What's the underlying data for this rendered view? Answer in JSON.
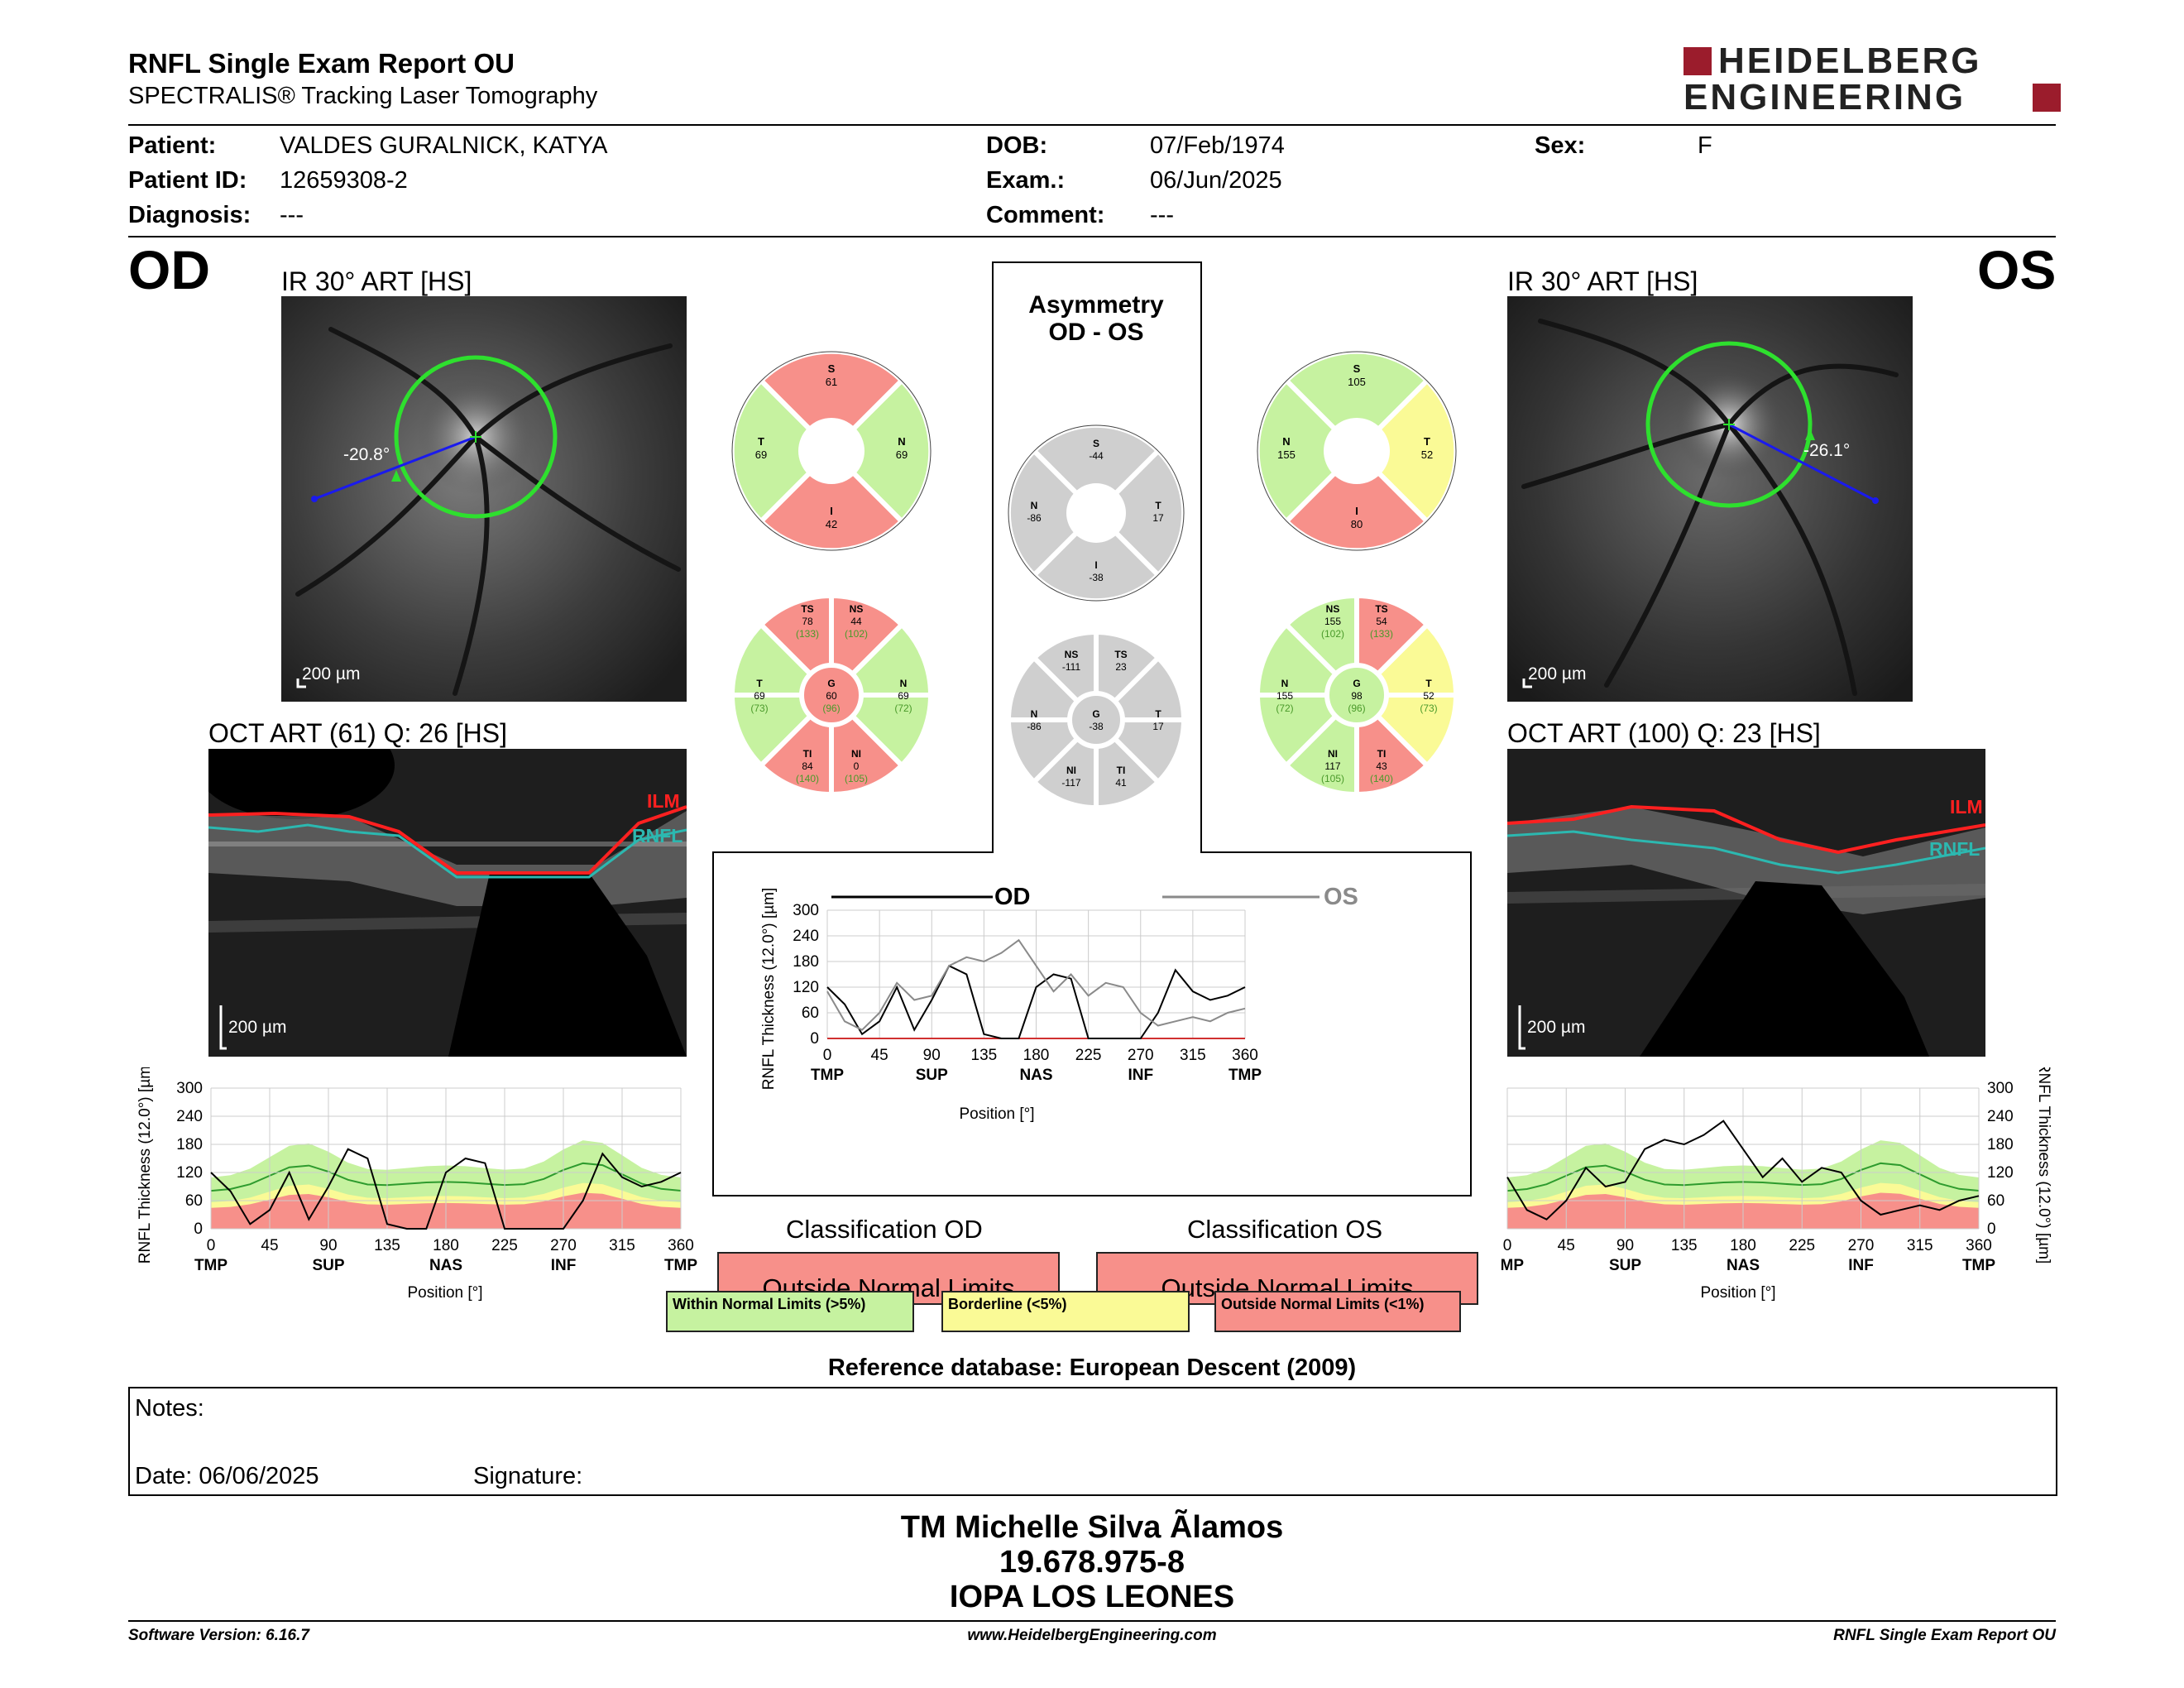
{
  "header": {
    "title": "RNFL Single Exam Report OU",
    "subtitle": "SPECTRALIS® Tracking Laser Tomography",
    "logo_line1": "HEIDELBERG",
    "logo_line2": "ENGINEERING"
  },
  "patient": {
    "patient_label": "Patient:",
    "patient_value": "VALDES GURALNICK, KATYA",
    "id_label": "Patient ID:",
    "id_value": "12659308-2",
    "diag_label": "Diagnosis:",
    "diag_value": "---",
    "dob_label": "DOB:",
    "dob_value": "07/Feb/1974",
    "exam_label": "Exam.:",
    "exam_value": "06/Jun/2025",
    "comment_label": "Comment:",
    "comment_value": "---",
    "sex_label": "Sex:",
    "sex_value": "F"
  },
  "od": {
    "eye": "OD",
    "ir_title": "IR 30° ART [HS]",
    "angle": "-20.8°",
    "scale": "200 µm",
    "oct_title": "OCT ART (61) Q: 26 [HS]",
    "ilm": "ILM",
    "rnfl": "RNFL",
    "sectors4": {
      "S": "61",
      "T": "69",
      "N": "69",
      "I": "42"
    },
    "sectors6": {
      "TS": "78",
      "TS_ref": "(133)",
      "NS": "44",
      "NS_ref": "(102)",
      "T": "69",
      "T_ref": "(73)",
      "G": "60",
      "G_ref": "(96)",
      "N": "69",
      "N_ref": "(72)",
      "TI": "84",
      "TI_ref": "(140)",
      "NI": "0",
      "NI_ref": "(105)"
    }
  },
  "os": {
    "eye": "OS",
    "ir_title": "IR 30° ART [HS]",
    "angle": "-26.1°",
    "scale": "200 µm",
    "oct_title": "OCT ART (100) Q: 23 [HS]",
    "ilm": "ILM",
    "rnfl": "RNFL",
    "sectors4": {
      "S": "105",
      "N": "155",
      "T": "52",
      "I": "80"
    },
    "sectors6": {
      "NS": "155",
      "NS_ref": "(102)",
      "TS": "54",
      "TS_ref": "(133)",
      "N": "155",
      "N_ref": "(72)",
      "G": "98",
      "G_ref": "(96)",
      "T": "52",
      "T_ref": "(73)",
      "NI": "117",
      "NI_ref": "(105)",
      "TI": "43",
      "TI_ref": "(140)"
    }
  },
  "asym": {
    "title1": "Asymmetry",
    "title2": "OD - OS",
    "sectors4": {
      "S": "-44",
      "N": "-86",
      "T": "17",
      "I": "-38"
    },
    "sectors6": {
      "NS": "-111",
      "TS": "23",
      "N": "-86",
      "G": "-38",
      "T": "17",
      "NI": "-117",
      "TI": "41"
    }
  },
  "charts": {
    "ylabel": "RNFL Thickness (12.0°) [µm]",
    "xlabel": "Position [°]",
    "od_legend": "OD",
    "os_legend": "OS",
    "x_ticks": [
      "0",
      "45",
      "90",
      "135",
      "180",
      "225",
      "270",
      "315",
      "360"
    ],
    "y_ticks": [
      "0",
      "60",
      "120",
      "180",
      "240",
      "300"
    ],
    "y_ticks_small": [
      "0",
      "60",
      "120",
      "180",
      "240",
      "300"
    ],
    "regions": [
      "TMP",
      "SUP",
      "NAS",
      "INF",
      "TMP"
    ]
  },
  "chart_data": {
    "type": "line",
    "xlabel": "Position [°]",
    "ylabel": "RNFL Thickness (12.0°) [µm]",
    "xlim": [
      0,
      360
    ],
    "ylim": [
      0,
      300
    ],
    "series": [
      {
        "name": "OD",
        "x": [
          0,
          15,
          30,
          45,
          60,
          75,
          90,
          105,
          120,
          135,
          150,
          165,
          180,
          195,
          210,
          225,
          240,
          255,
          270,
          285,
          300,
          315,
          330,
          345,
          360
        ],
        "values": [
          120,
          80,
          10,
          40,
          120,
          20,
          90,
          170,
          150,
          10,
          0,
          0,
          120,
          150,
          140,
          0,
          0,
          0,
          0,
          60,
          160,
          110,
          90,
          100,
          120
        ]
      },
      {
        "name": "OS",
        "x": [
          0,
          15,
          30,
          45,
          60,
          75,
          90,
          105,
          120,
          135,
          150,
          165,
          180,
          195,
          210,
          225,
          240,
          255,
          270,
          285,
          300,
          315,
          330,
          345,
          360
        ],
        "values": [
          110,
          40,
          20,
          60,
          130,
          90,
          100,
          170,
          190,
          180,
          200,
          230,
          170,
          110,
          150,
          100,
          130,
          120,
          60,
          30,
          40,
          50,
          40,
          60,
          70
        ]
      }
    ]
  },
  "classification": {
    "od_title": "Classification OD",
    "os_title": "Classification OS",
    "od_value": "Outside Normal Limits",
    "os_value": "Outside Normal Limits",
    "legend_within": "Within Normal Limits (>5%)",
    "legend_border": "Borderline (<5%)",
    "legend_outside": "Outside Normal Limits (<1%)",
    "reference": "Reference database: European Descent (2009)"
  },
  "notes": {
    "notes_label": "Notes:",
    "date_label": "Date: 06/06/2025",
    "signature_label": "Signature:"
  },
  "footer": {
    "name": "TM Michelle Silva Ãlamos",
    "rut": "19.678.975-8",
    "clinic": "IOPA LOS LEONES",
    "software": "Software Version: 6.16.7",
    "website": "www.HeidelbergEngineering.com",
    "report": "RNFL Single Exam Report OU"
  },
  "colors": {
    "green": "#c6f2a0",
    "yellow": "#fafa96",
    "red": "#f7908a",
    "gray": "#cfcfcf",
    "brand": "#9b1c2c"
  }
}
